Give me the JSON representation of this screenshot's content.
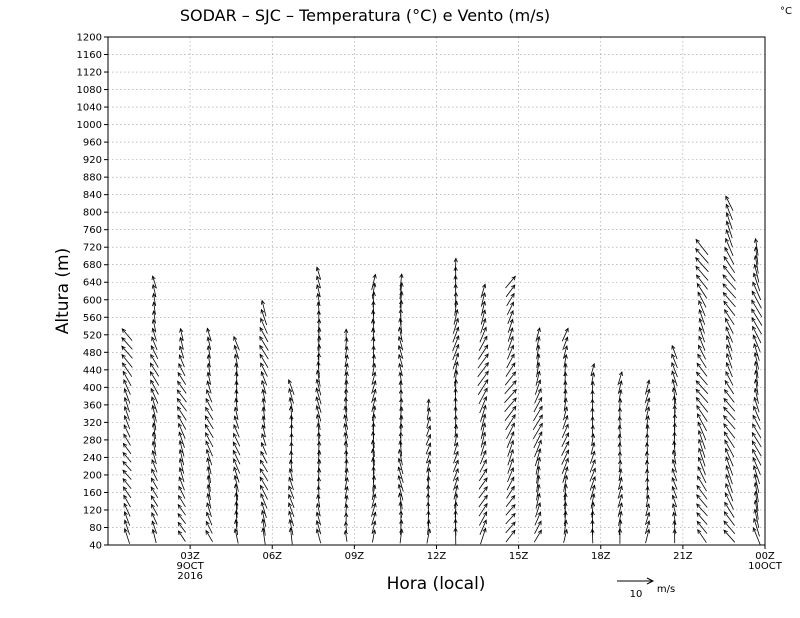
{
  "chart_data": {
    "type": "wind-barb-profile",
    "title": "SODAR  –  SJC  –  Temperatura (°C) e Vento (m/s)",
    "temperature_unit_label": "°C",
    "xlabel": "Hora (local)",
    "ylabel": "Altura (m)",
    "ylim": [
      40,
      1200
    ],
    "y_ticks": [
      40,
      80,
      120,
      160,
      200,
      240,
      280,
      320,
      360,
      400,
      440,
      480,
      520,
      560,
      600,
      640,
      680,
      720,
      760,
      800,
      840,
      880,
      920,
      960,
      1000,
      1040,
      1080,
      1120,
      1160,
      1200
    ],
    "xlim_hours": [
      0,
      24
    ],
    "x_ticks": [
      {
        "hour": 3,
        "lines": [
          "03Z",
          "9OCT",
          "2016"
        ]
      },
      {
        "hour": 6,
        "lines": [
          "06Z"
        ]
      },
      {
        "hour": 9,
        "lines": [
          "09Z"
        ]
      },
      {
        "hour": 12,
        "lines": [
          "12Z"
        ]
      },
      {
        "hour": 15,
        "lines": [
          "15Z"
        ]
      },
      {
        "hour": 18,
        "lines": [
          "18Z"
        ]
      },
      {
        "hour": 21,
        "lines": [
          "21Z"
        ]
      },
      {
        "hour": 24,
        "lines": [
          "00Z",
          "10OCT"
        ]
      }
    ],
    "grid": true,
    "reference_vector": {
      "speed": 10,
      "label": "10",
      "unit": "m/s"
    },
    "profiles": [
      {
        "hour": 0.7,
        "max_height": 520,
        "direction_deg": 150,
        "speed": 6
      },
      {
        "hour": 1.7,
        "max_height": 640,
        "direction_deg": 160,
        "speed": 6
      },
      {
        "hour": 2.7,
        "max_height": 520,
        "direction_deg": 155,
        "speed": 6
      },
      {
        "hour": 3.7,
        "max_height": 520,
        "direction_deg": 160,
        "speed": 6
      },
      {
        "hour": 4.7,
        "max_height": 500,
        "direction_deg": 165,
        "speed": 6
      },
      {
        "hour": 5.7,
        "max_height": 580,
        "direction_deg": 160,
        "speed": 6
      },
      {
        "hour": 6.7,
        "max_height": 400,
        "direction_deg": 170,
        "speed": 6
      },
      {
        "hour": 7.7,
        "max_height": 660,
        "direction_deg": 175,
        "speed": 6
      },
      {
        "hour": 8.7,
        "max_height": 530,
        "direction_deg": 180,
        "speed": 5
      },
      {
        "hour": 9.7,
        "max_height": 650,
        "direction_deg": 185,
        "speed": 6
      },
      {
        "hour": 10.7,
        "max_height": 640,
        "direction_deg": 175,
        "speed": 6
      },
      {
        "hour": 11.7,
        "max_height": 370,
        "direction_deg": 190,
        "speed": 5
      },
      {
        "hour": 12.7,
        "max_height": 680,
        "direction_deg": 190,
        "speed": 6
      },
      {
        "hour": 13.7,
        "max_height": 620,
        "direction_deg": 205,
        "speed": 7
      },
      {
        "hour": 14.7,
        "max_height": 650,
        "direction_deg": 210,
        "speed": 7
      },
      {
        "hour": 15.7,
        "max_height": 520,
        "direction_deg": 200,
        "speed": 7
      },
      {
        "hour": 16.7,
        "max_height": 520,
        "direction_deg": 195,
        "speed": 6
      },
      {
        "hour": 17.7,
        "max_height": 450,
        "direction_deg": 190,
        "speed": 5
      },
      {
        "hour": 18.7,
        "max_height": 420,
        "direction_deg": 185,
        "speed": 5
      },
      {
        "hour": 19.7,
        "max_height": 400,
        "direction_deg": 185,
        "speed": 5
      },
      {
        "hour": 20.7,
        "max_height": 480,
        "direction_deg": 170,
        "speed": 6
      },
      {
        "hour": 21.7,
        "max_height": 730,
        "direction_deg": 150,
        "speed": 8
      },
      {
        "hour": 22.7,
        "max_height": 820,
        "direction_deg": 150,
        "speed": 8
      },
      {
        "hour": 23.7,
        "max_height": 730,
        "direction_deg": 160,
        "speed": 8
      }
    ]
  }
}
